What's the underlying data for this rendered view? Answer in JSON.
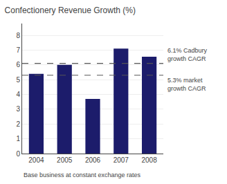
{
  "chart_data": {
    "type": "bar",
    "title": "Confectionery Revenue Growth (%)",
    "categories": [
      "2004",
      "2005",
      "2006",
      "2007",
      "2008"
    ],
    "values": [
      5.4,
      6.0,
      3.7,
      7.1,
      6.55
    ],
    "color": "#1c1c6b",
    "ylim": [
      0,
      8.8
    ],
    "yticks": [
      0,
      1,
      2,
      3,
      4,
      5,
      6,
      7,
      8
    ],
    "grid": true,
    "reference_lines": [
      {
        "value": 6.1,
        "label": "6.1% Cadbury\ngrowth CAGR"
      },
      {
        "value": 5.3,
        "label": "5.3% market\ngrowth CAGR"
      }
    ],
    "footnote": "Base business at constant exchange rates"
  }
}
